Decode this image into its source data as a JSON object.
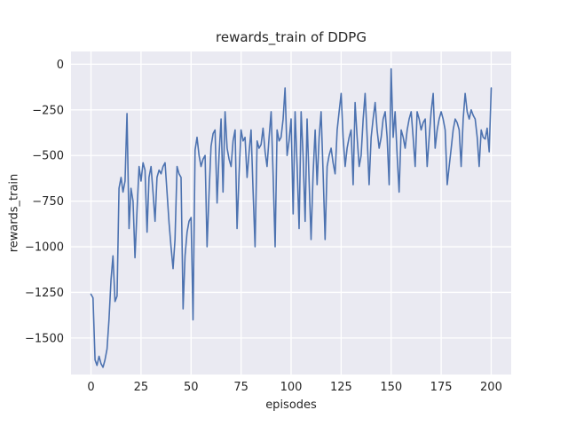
{
  "chart_data": {
    "type": "line",
    "title": "rewards_train of DDPG",
    "xlabel": "episodes",
    "ylabel": "rewards_train",
    "grid": true,
    "legend": "none",
    "xlim": [
      -10,
      210
    ],
    "ylim": [
      -1700,
      70
    ],
    "xticks": [
      0,
      25,
      50,
      75,
      100,
      125,
      150,
      175,
      200
    ],
    "yticks": [
      0,
      -250,
      -500,
      -750,
      -1000,
      -1250,
      -1500
    ],
    "x_start": 0,
    "x_step": 1,
    "style": {
      "axes_bg": "#eaeaf2",
      "grid_color": "#ffffff",
      "text_color": "#262626",
      "figure_bg": "#ffffff"
    },
    "series": [
      {
        "name": "rewards_train",
        "color": "#4c72b0",
        "y": [
          -1260,
          -1280,
          -1620,
          -1650,
          -1600,
          -1640,
          -1660,
          -1620,
          -1560,
          -1400,
          -1180,
          -1050,
          -1300,
          -1270,
          -680,
          -620,
          -700,
          -640,
          -270,
          -900,
          -680,
          -750,
          -1060,
          -800,
          -560,
          -640,
          -540,
          -580,
          -920,
          -620,
          -560,
          -700,
          -860,
          -620,
          -580,
          -600,
          -560,
          -540,
          -700,
          -870,
          -1000,
          -1120,
          -960,
          -560,
          -600,
          -620,
          -1340,
          -1050,
          -920,
          -860,
          -840,
          -1400,
          -470,
          -400,
          -500,
          -560,
          -520,
          -500,
          -1000,
          -700,
          -450,
          -380,
          -360,
          -760,
          -500,
          -300,
          -700,
          -260,
          -460,
          -520,
          -560,
          -420,
          -360,
          -900,
          -600,
          -360,
          -420,
          -400,
          -620,
          -480,
          -360,
          -700,
          -1000,
          -420,
          -460,
          -440,
          -350,
          -480,
          -560,
          -400,
          -260,
          -600,
          -1000,
          -360,
          -420,
          -400,
          -300,
          -130,
          -500,
          -420,
          -300,
          -820,
          -260,
          -560,
          -900,
          -260,
          -500,
          -860,
          -300,
          -640,
          -960,
          -600,
          -360,
          -660,
          -400,
          -260,
          -600,
          -960,
          -560,
          -500,
          -460,
          -540,
          -600,
          -360,
          -260,
          -160,
          -400,
          -560,
          -460,
          -400,
          -360,
          -660,
          -210,
          -400,
          -560,
          -500,
          -300,
          -160,
          -400,
          -660,
          -400,
          -300,
          -210,
          -360,
          -460,
          -400,
          -300,
          -260,
          -400,
          -660,
          -25,
          -400,
          -260,
          -500,
          -700,
          -360,
          -400,
          -460,
          -360,
          -300,
          -260,
          -400,
          -560,
          -260,
          -300,
          -360,
          -320,
          -300,
          -560,
          -400,
          -260,
          -160,
          -460,
          -360,
          -300,
          -260,
          -300,
          -360,
          -660,
          -560,
          -460,
          -360,
          -300,
          -320,
          -360,
          -560,
          -300,
          -160,
          -260,
          -300,
          -250,
          -280,
          -300,
          -400,
          -560,
          -360,
          -400,
          -410,
          -350,
          -480,
          -130
        ]
      }
    ]
  }
}
